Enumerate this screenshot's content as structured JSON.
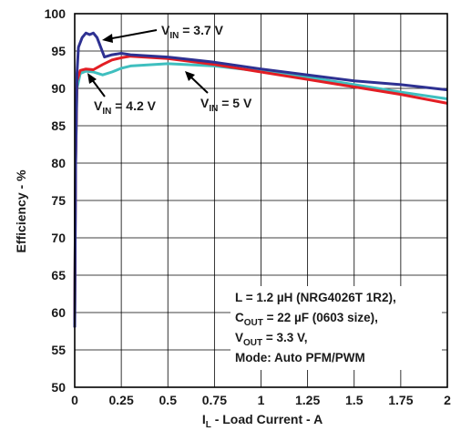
{
  "chart_data": {
    "type": "line",
    "title": "",
    "xlabel_main": "I",
    "xlabel_sub": "L",
    "xlabel_rest": " - Load Current - A",
    "ylabel": "Efficiency - %",
    "xlim": [
      0,
      2
    ],
    "ylim": [
      50,
      100
    ],
    "grid": true,
    "x_ticks": [
      "0",
      "0.25",
      "0.5",
      "0.75",
      "1",
      "1.25",
      "1.5",
      "1.75",
      "2"
    ],
    "y_ticks": [
      "50",
      "55",
      "60",
      "65",
      "70",
      "75",
      "80",
      "85",
      "90",
      "95",
      "100"
    ],
    "series": [
      {
        "label_main": "V",
        "label_sub": "IN",
        "label_rest": " = 3.7 V",
        "color": "#2e3192",
        "points": [
          [
            0,
            58
          ],
          [
            0.005,
            80
          ],
          [
            0.012,
            92
          ],
          [
            0.02,
            95.5
          ],
          [
            0.04,
            96.8
          ],
          [
            0.06,
            97.4
          ],
          [
            0.08,
            97.2
          ],
          [
            0.1,
            97.4
          ],
          [
            0.12,
            96.8
          ],
          [
            0.14,
            95.5
          ],
          [
            0.16,
            94.2
          ],
          [
            0.2,
            94.5
          ],
          [
            0.25,
            94.7
          ],
          [
            0.3,
            94.5
          ],
          [
            0.5,
            94.2
          ],
          [
            0.75,
            93.5
          ],
          [
            1,
            92.6
          ],
          [
            1.25,
            91.8
          ],
          [
            1.5,
            91.0
          ],
          [
            1.75,
            90.5
          ],
          [
            2,
            89.8
          ]
        ]
      },
      {
        "label_main": "V",
        "label_sub": "IN",
        "label_rest": " = 4.2 V",
        "color": "#e31e24",
        "points": [
          [
            0,
            59
          ],
          [
            0.005,
            80
          ],
          [
            0.012,
            91
          ],
          [
            0.03,
            92.4
          ],
          [
            0.06,
            92.6
          ],
          [
            0.1,
            92.5
          ],
          [
            0.15,
            93.2
          ],
          [
            0.2,
            93.8
          ],
          [
            0.25,
            94.1
          ],
          [
            0.3,
            94.3
          ],
          [
            0.5,
            94.0
          ],
          [
            0.75,
            93.2
          ],
          [
            1,
            92.2
          ],
          [
            1.25,
            91.2
          ],
          [
            1.5,
            90.2
          ],
          [
            1.75,
            89.2
          ],
          [
            2,
            88.0
          ]
        ]
      },
      {
        "label_main": "V",
        "label_sub": "IN",
        "label_rest": " = 5 V",
        "color": "#3fbfbf",
        "points": [
          [
            0,
            59
          ],
          [
            0.005,
            80
          ],
          [
            0.012,
            90
          ],
          [
            0.03,
            92.0
          ],
          [
            0.06,
            92.3
          ],
          [
            0.1,
            92.2
          ],
          [
            0.15,
            91.8
          ],
          [
            0.2,
            92.2
          ],
          [
            0.25,
            92.7
          ],
          [
            0.3,
            93.0
          ],
          [
            0.5,
            93.3
          ],
          [
            0.75,
            93.0
          ],
          [
            1,
            92.3
          ],
          [
            1.25,
            91.5
          ],
          [
            1.5,
            90.5
          ],
          [
            1.75,
            89.5
          ],
          [
            2,
            88.6
          ]
        ]
      }
    ],
    "conditions": {
      "line1": "L = 1.2 µH (NRG4026T 1R2),",
      "line2_main": "C",
      "line2_sub": "OUT",
      "line2_rest": " = 22 µF (0603 size),",
      "line3_main": "V",
      "line3_sub": "OUT",
      "line3_rest": " = 3.3 V,",
      "line4": "Mode: Auto PFM/PWM"
    }
  }
}
